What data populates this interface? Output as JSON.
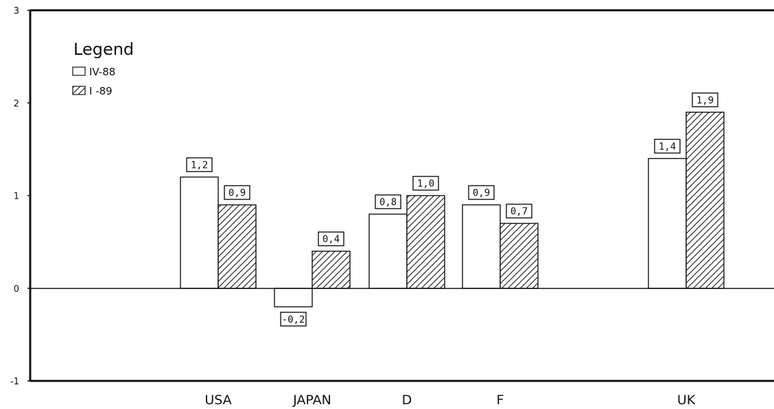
{
  "chart_data": {
    "type": "bar",
    "categories": [
      "USA",
      "JAPAN",
      "D",
      "F",
      "UK"
    ],
    "series": [
      {
        "name": "IV-88",
        "values": [
          1.2,
          -0.2,
          0.8,
          0.9,
          1.4
        ],
        "value_labels": [
          "1,2",
          "-0,2",
          "0,8",
          "0,9",
          "1,4"
        ],
        "fill": "white"
      },
      {
        "name": "I -89",
        "values": [
          0.9,
          0.4,
          1.0,
          0.7,
          1.9
        ],
        "value_labels": [
          "0,9",
          "0,4",
          "1,0",
          "0,7",
          "1,9"
        ],
        "fill": "hatched"
      }
    ],
    "ylim": [
      -1,
      3
    ],
    "yticks": [
      -1,
      0,
      1,
      2,
      3
    ],
    "ytick_labels": [
      "-1",
      "0",
      "1",
      "2",
      "3"
    ],
    "legend": {
      "title": "Legend",
      "placement": "top-left"
    },
    "grid": false,
    "title": "",
    "xlabel": "",
    "ylabel": ""
  }
}
